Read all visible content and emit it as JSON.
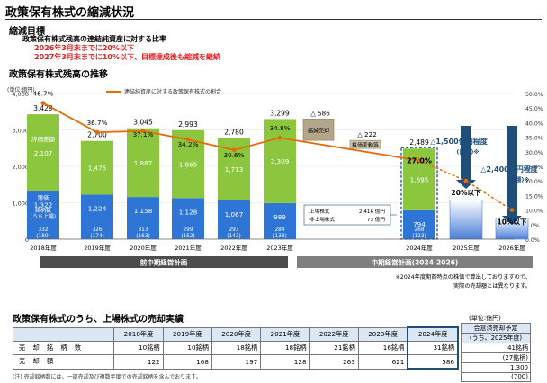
{
  "page": {
    "title": "政策保有株式の縮減状況",
    "goal_heading": "縮減目標",
    "goal_line1": "政策保有株式残高の連結純資産に対する比率",
    "goal_line2": "2026年3月末までに20%以下",
    "goal_line3": "2027年3月末までに10%以下、目標達成後も縮減を継続",
    "chart_heading": "政策保有株式残高の推移",
    "table_heading": "政策保有株式のうち、上場株式の売却実績"
  },
  "chart_data": {
    "type": "bar",
    "left_unit": "(単位:億円)",
    "legend_line": "連結純資産に対する政策保有株式の割合",
    "categories": [
      "2018年度",
      "2019年度",
      "2020年度",
      "2021年度",
      "2022年度",
      "2023年度",
      "2024年度",
      "2025年度",
      "2026年度"
    ],
    "ylim": [
      0,
      4000
    ],
    "yticks": [
      "0",
      "1,000",
      "2,000",
      "3,000",
      "4,000"
    ],
    "y2lim": [
      0,
      50
    ],
    "y2ticks": [
      "0.0%",
      "5.0%",
      "10.0%",
      "15.0%",
      "20.0%",
      "25.0%",
      "30.0%",
      "35.0%",
      "40.0%",
      "45.0%",
      "50.0%"
    ],
    "totals": [
      3429,
      2700,
      3045,
      2993,
      2780,
      3299,
      2489
    ],
    "total_labels": [
      "3,429",
      "2,700",
      "3,045",
      "2,993",
      "2,780",
      "3,299",
      "2,489"
    ],
    "unlisted_values": [
      2107,
      1475,
      1887,
      1865,
      1713,
      2309,
      1695
    ],
    "unlisted_labels": [
      "2,107",
      "1,475",
      "1,887",
      "1,865",
      "1,713",
      "2,309",
      "1,695"
    ],
    "listed_values": [
      1322,
      1224,
      1158,
      1128,
      1067,
      989,
      794
    ],
    "listed_labels": [
      "1,322",
      "1,224",
      "1,158",
      "1,128",
      "1,067",
      "989",
      "794"
    ],
    "issue_counts": [
      "332\n(180)",
      "326\n(174)",
      "313\n(163)",
      "299\n(152)",
      "293\n(143)",
      "284\n(138)",
      "268\n(123)"
    ],
    "ratio_values": [
      46.7,
      36.7,
      37.1,
      34.2,
      30.6,
      34.8,
      27.0,
      20.0,
      10.0
    ],
    "ratio_labels": [
      "46.7%",
      "36.7%",
      "37.1%",
      "34.2%",
      "30.6%",
      "34.8%",
      "27.0%",
      "20%以下",
      "10%以下"
    ],
    "first_bar_labels": {
      "unlisted": "評価差額",
      "listed": "簿価",
      "issues": "銘柄数\n(うち上場)"
    },
    "waterfall": [
      {
        "label": "△ 586",
        "tag": "縮減売却",
        "value": -586
      },
      {
        "label": "△ 222",
        "tag": "株価変動等",
        "value": -222
      }
    ],
    "forecast": [
      {
        "label": "△1,500億円程度",
        "sub": "(目標)※"
      },
      {
        "label": "△2,400億円程度",
        "sub": "(目標)※"
      }
    ],
    "inset": {
      "row1_label": "上場株式",
      "row1_value": "2,416 億円",
      "row2_label": "非上場株式",
      "row2_value": "73 億円"
    },
    "period1": "前中期経営計画",
    "period2": "中期経営計画(2024-2026)",
    "note_line1": "※2024年度期首時点の株価で算出しておりますので、",
    "note_line2": "実際の売却額とは異なります。"
  },
  "sales_table": {
    "headers": [
      "",
      "2018年度",
      "2019年度",
      "2020年度",
      "2021年度",
      "2022年度",
      "2023年度",
      "2024年度"
    ],
    "rows": [
      {
        "label": "売 却 銘 柄 数",
        "cells": [
          "10銘柄",
          "10銘柄",
          "18銘柄",
          "18銘柄",
          "21銘柄",
          "16銘柄",
          "31銘柄"
        ]
      },
      {
        "label": "売 却 額",
        "cells": [
          "122",
          "168",
          "197",
          "128",
          "263",
          "621",
          "586"
        ]
      }
    ],
    "unit": "(単位:億円)",
    "side_header1": "合意済売却予定",
    "side_header2": "(うち、2025年度)",
    "side_values": [
      "41銘柄",
      "(27銘柄)",
      "1,300",
      "(700)"
    ],
    "footnote": "(注) 売却銘柄数には、一部売却及び複数年度での売却銘柄を含んでおります。"
  }
}
